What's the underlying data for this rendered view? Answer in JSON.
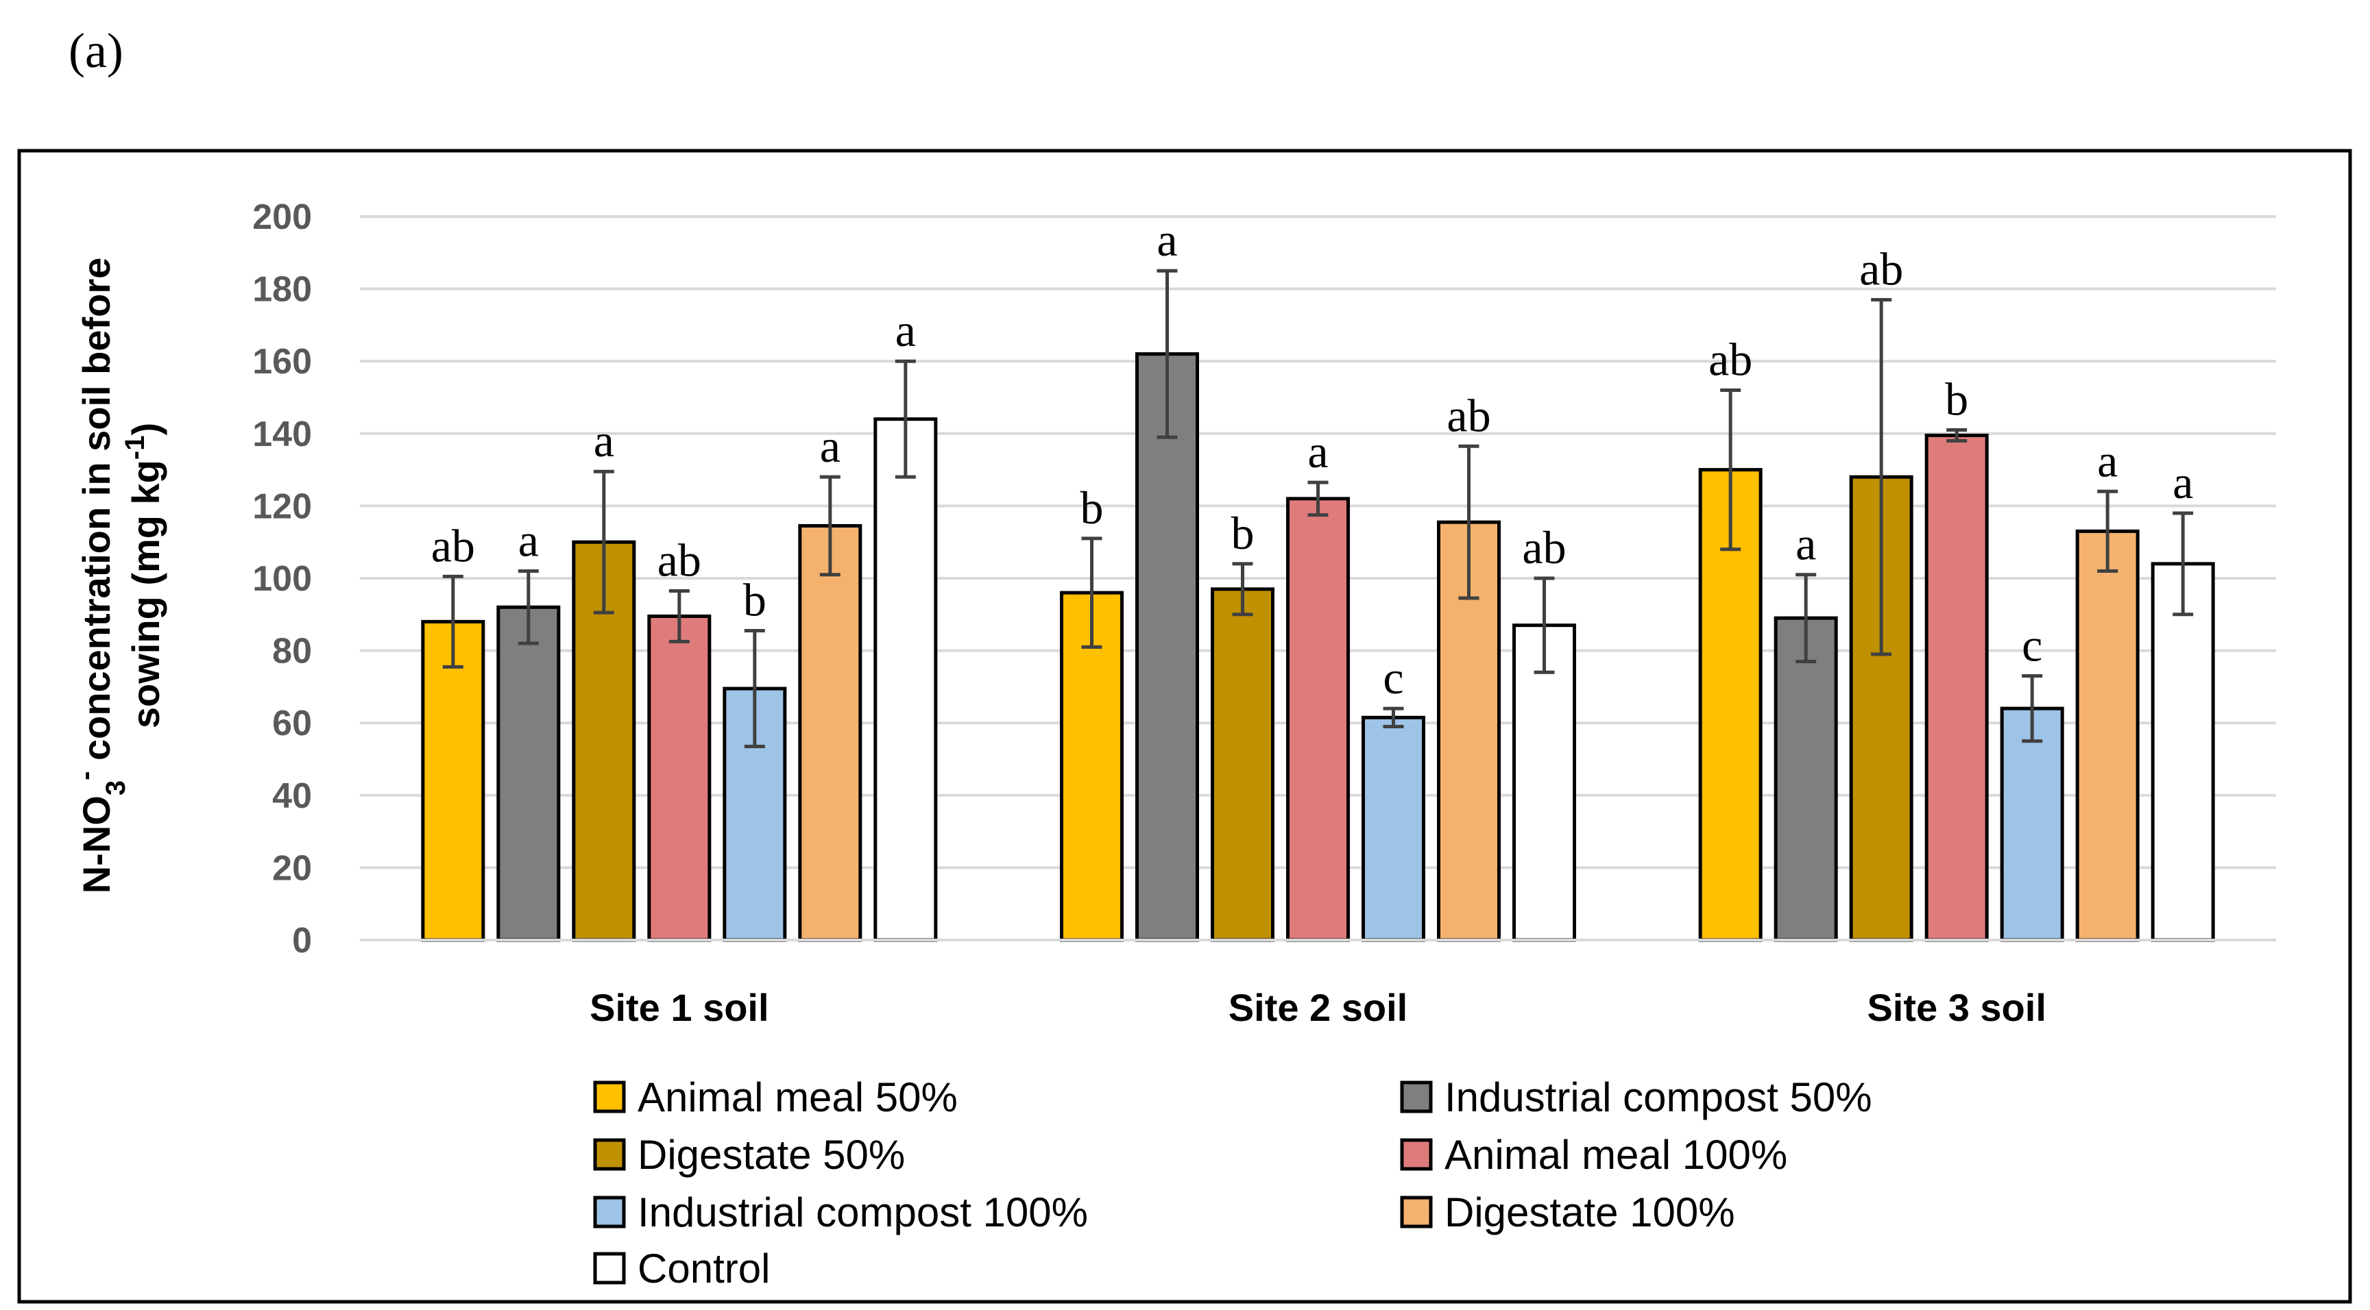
{
  "panel_label": "(a)",
  "colors": {
    "frame": "#000000",
    "grid": "#d9d9d9",
    "error_bar": "#404040",
    "bar_outline": "#000000"
  },
  "chart_data": {
    "type": "bar",
    "title": "",
    "ylabel_line1": "N-NO3- concentration in soil  before",
    "ylabel_line2": "sowing (mg kg-1)",
    "ylabel_parts": {
      "line1": [
        {
          "text": "N-NO",
          "shift": "none"
        },
        {
          "text": "3",
          "shift": "sub"
        },
        {
          "text": "-",
          "shift": "super"
        },
        {
          "text": " concentration in soil  before",
          "shift": "none"
        }
      ],
      "line2": [
        {
          "text": "sowing (mg kg",
          "shift": "none"
        },
        {
          "text": "-1",
          "shift": "super"
        },
        {
          "text": ")",
          "shift": "none"
        }
      ]
    },
    "xlabel": "",
    "ylim": [
      0,
      200
    ],
    "yticks": [
      0,
      20,
      40,
      60,
      80,
      100,
      120,
      140,
      160,
      180,
      200
    ],
    "grid": true,
    "categories": [
      "Site 1 soil",
      "Site 2 soil",
      "Site 3 soil"
    ],
    "series": [
      {
        "name": "Animal meal  50%",
        "color": "#FFC000",
        "values": [
          88,
          96,
          130
        ],
        "errors": [
          12.5,
          15,
          22
        ],
        "letters": [
          "ab",
          "b",
          "ab"
        ]
      },
      {
        "name": "Industrial compost 50%",
        "color": "#7F7F7F",
        "values": [
          92,
          162,
          89
        ],
        "errors": [
          10,
          23,
          12
        ],
        "letters": [
          "a",
          "a",
          "a"
        ]
      },
      {
        "name": "Digestate 50%",
        "color": "#BF9000",
        "values": [
          110,
          97,
          128
        ],
        "errors": [
          19.5,
          7,
          49
        ],
        "letters": [
          "a",
          "b",
          "ab"
        ]
      },
      {
        "name": "Animal meal 100%",
        "color": "#E07B7B",
        "values": [
          89.5,
          122,
          139.5
        ],
        "errors": [
          7,
          4.5,
          1.5
        ],
        "letters": [
          "ab",
          "a",
          "b"
        ]
      },
      {
        "name": "Industrial compost 100%",
        "color": "#9DC3E6",
        "values": [
          69.5,
          61.5,
          64
        ],
        "errors": [
          16,
          2.5,
          9
        ],
        "letters": [
          "b",
          "c",
          "c"
        ]
      },
      {
        "name": "Digestate 100%",
        "color": "#F4B26E",
        "values": [
          114.5,
          115.5,
          113
        ],
        "errors": [
          13.5,
          21,
          11
        ],
        "letters": [
          "a",
          "ab",
          "a"
        ]
      },
      {
        "name": "Control",
        "color": "#FFFFFF",
        "values": [
          144,
          87,
          104
        ],
        "errors": [
          16,
          13,
          14
        ],
        "letters": [
          "a",
          "ab",
          "a"
        ]
      }
    ],
    "legend_position": "bottom"
  }
}
